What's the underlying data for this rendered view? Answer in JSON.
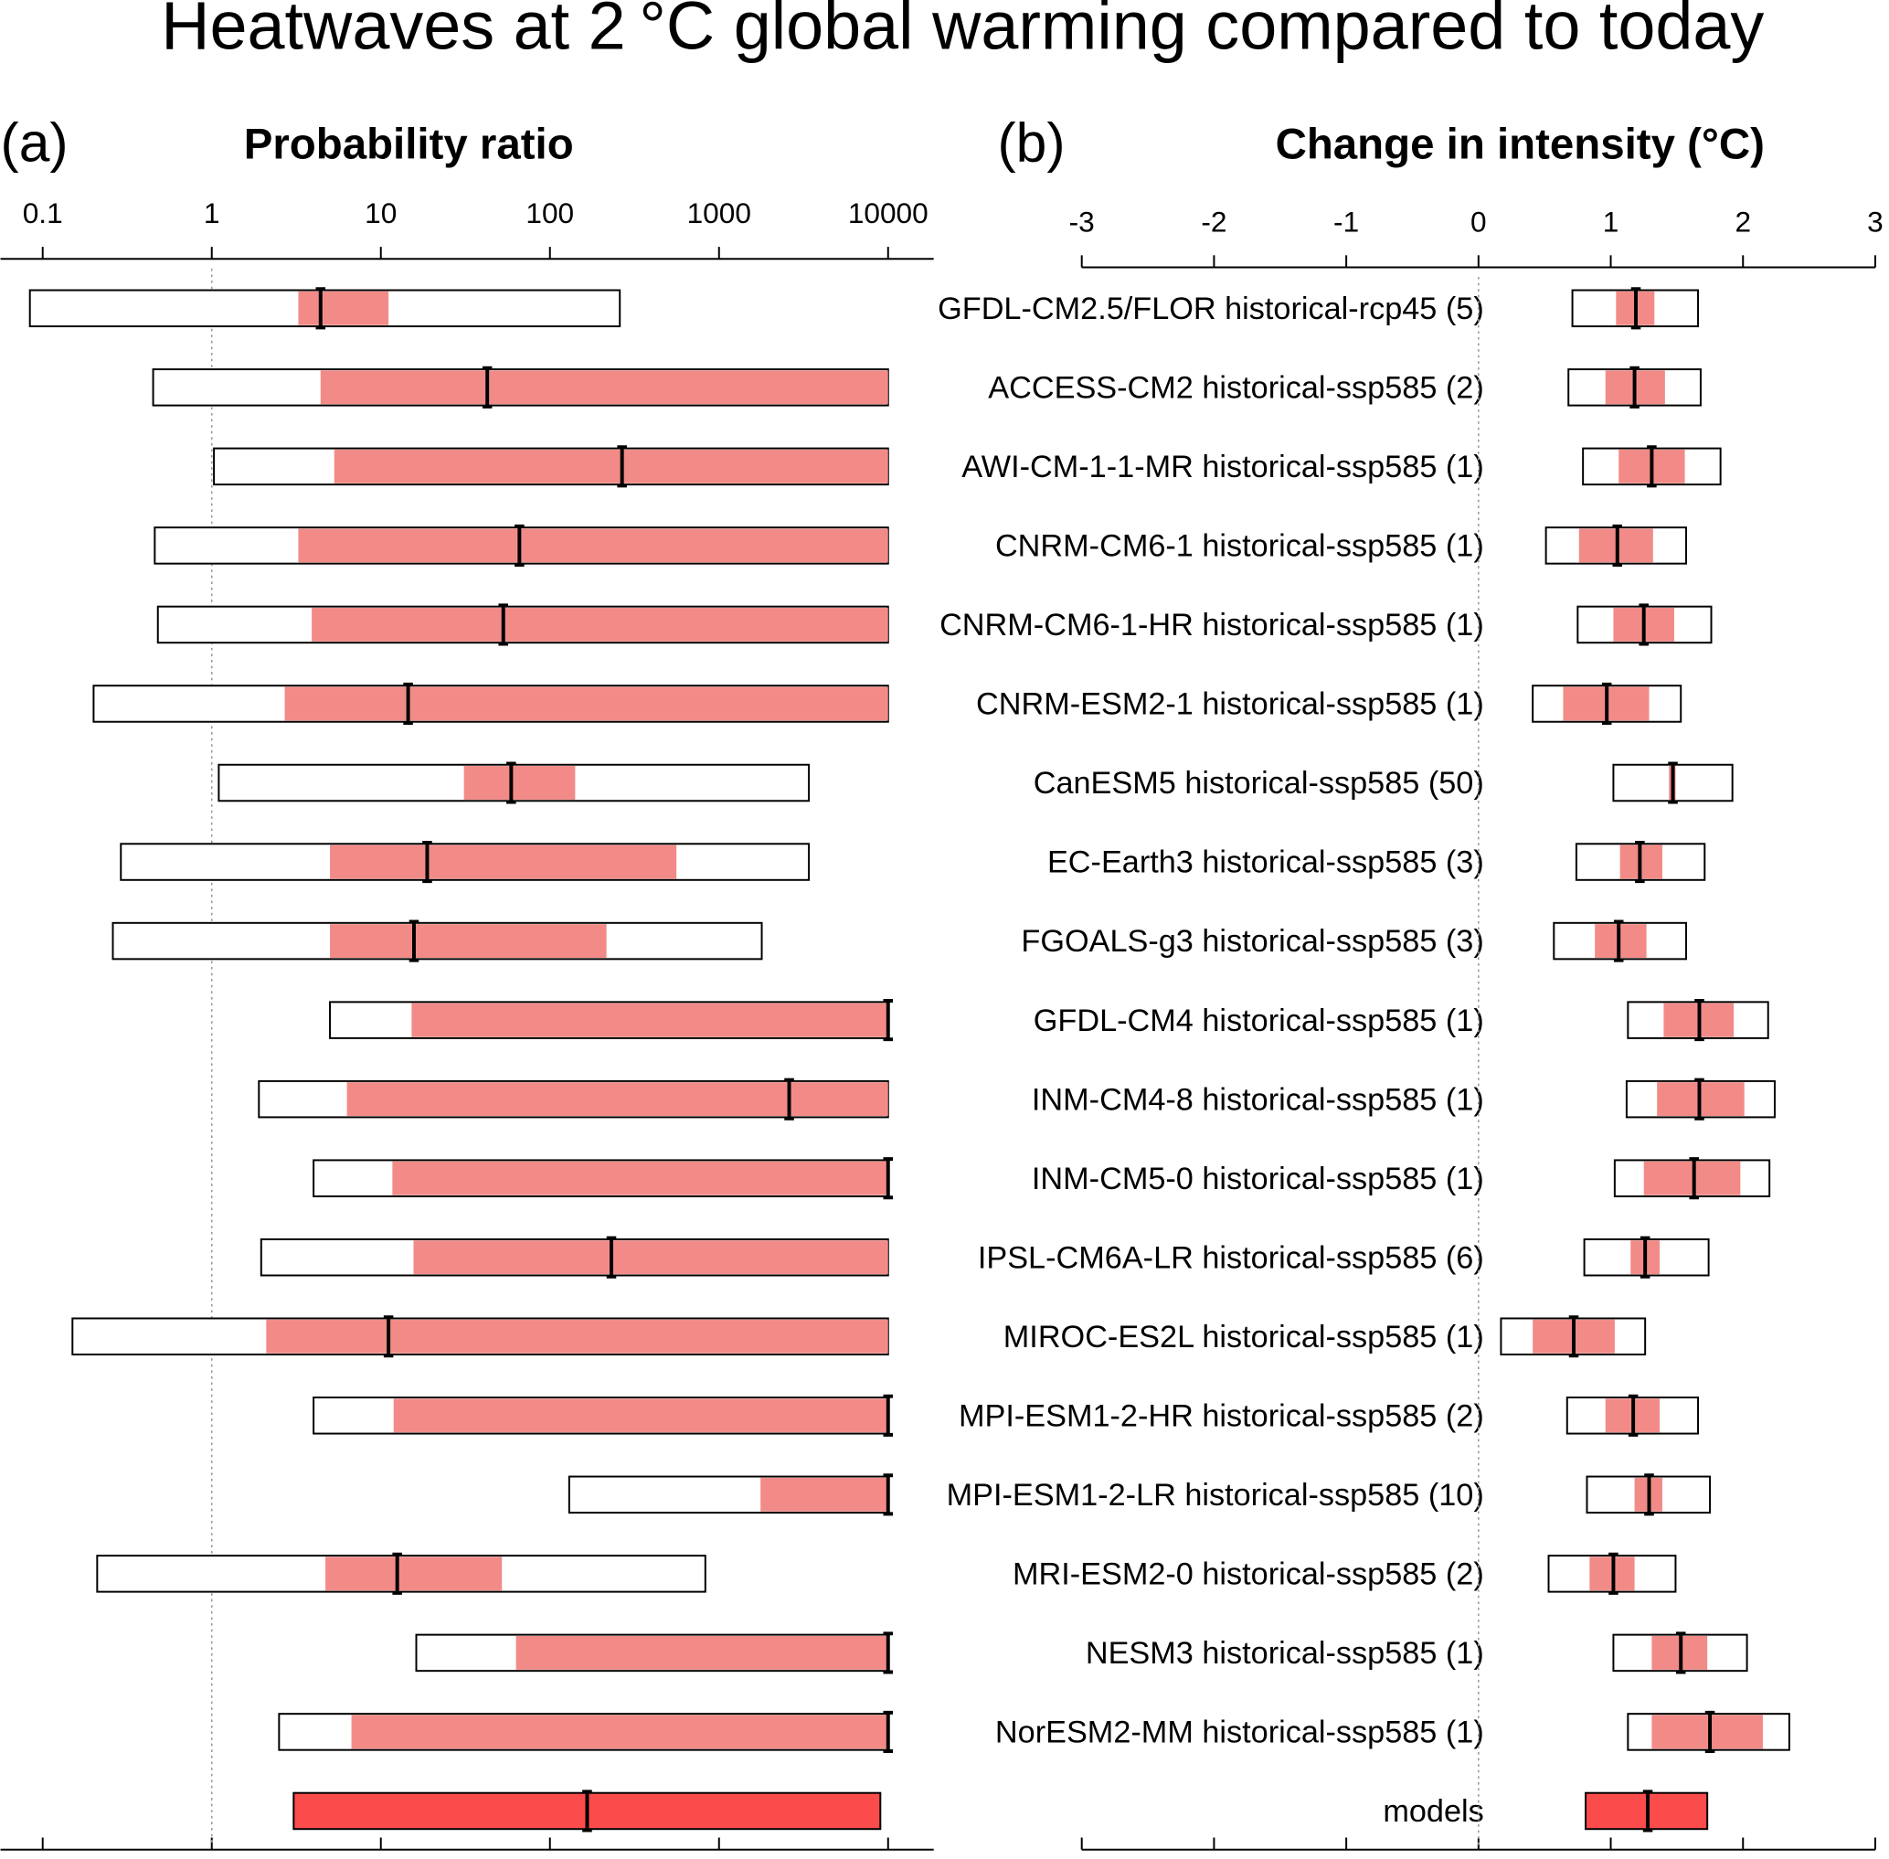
{
  "title": "Heatwaves at 2 °C global warming compared to today",
  "categories": [
    "GFDL-CM2.5/FLOR historical-rcp45 (5)",
    "ACCESS-CM2 historical-ssp585 (2)",
    "AWI-CM-1-1-MR historical-ssp585 (1)",
    "CNRM-CM6-1 historical-ssp585 (1)",
    "CNRM-CM6-1-HR historical-ssp585 (1)",
    "CNRM-ESM2-1 historical-ssp585 (1)",
    "CanESM5 historical-ssp585 (50)",
    "EC-Earth3 historical-ssp585 (3)",
    "FGOALS-g3 historical-ssp585 (3)",
    "GFDL-CM4 historical-ssp585 (1)",
    "INM-CM4-8 historical-ssp585 (1)",
    "INM-CM5-0 historical-ssp585 (1)",
    "IPSL-CM6A-LR historical-ssp585 (6)",
    "MIROC-ES2L historical-ssp585 (1)",
    "MPI-ESM1-2-HR historical-ssp585 (2)",
    "MPI-ESM1-2-LR historical-ssp585 (10)",
    "MRI-ESM2-0 historical-ssp585 (2)",
    "NESM3 historical-ssp585 (1)",
    "NorESM2-MM historical-ssp585 (1)",
    "models"
  ],
  "chart_data": [
    {
      "type": "range",
      "panel": "(a)",
      "title": "Probability ratio",
      "log": true,
      "xlim": [
        0.0563,
        18600
      ],
      "xticks": [
        0.1,
        1,
        10,
        100,
        1000,
        10000
      ],
      "refline": 1,
      "low": [
        0.084,
        0.45,
        1.03,
        0.46,
        0.48,
        0.2,
        1.1,
        0.29,
        0.26,
        5.0,
        1.9,
        4.0,
        1.96,
        0.15,
        4.0,
        130,
        0.21,
        16.2,
        2.5,
        null
      ],
      "high": [
        259,
        10000,
        10000,
        10000,
        10000,
        10000,
        3400,
        3400,
        1790,
        10000,
        10000,
        10000,
        10000,
        10000,
        10000,
        10000,
        830,
        10000,
        10000,
        null
      ],
      "inner_low": [
        3.25,
        4.4,
        5.3,
        3.25,
        3.9,
        2.7,
        31,
        5.0,
        5.0,
        15.2,
        6.3,
        11.7,
        15.6,
        2.1,
        11.9,
        1760,
        4.7,
        63,
        6.7,
        3.05
      ],
      "inner_high": [
        11.1,
        10000,
        10000,
        10000,
        10000,
        10000,
        141,
        560,
        216,
        10000,
        10000,
        10000,
        10000,
        10000,
        10000,
        10000,
        52,
        10000,
        10000,
        9000
      ],
      "best": [
        4.4,
        42.6,
        267,
        66,
        53,
        14.5,
        59,
        18.8,
        15.7,
        10000,
        2600,
        10000,
        231,
        11.1,
        10000,
        10000,
        12.5,
        10000,
        10000,
        166
      ],
      "inner_color": "#f28b87",
      "models_color": "#fb4b4b"
    },
    {
      "type": "range",
      "panel": "(b)",
      "title": "Change in intensity (°C)",
      "log": false,
      "xlim": [
        -3,
        3
      ],
      "xticks": [
        -3,
        -2,
        -1,
        0,
        1,
        2,
        3
      ],
      "refline": 0,
      "low": [
        0.71,
        0.68,
        0.79,
        0.51,
        0.75,
        0.41,
        1.02,
        0.74,
        0.57,
        1.13,
        1.12,
        1.03,
        0.8,
        0.17,
        0.67,
        0.82,
        0.53,
        1.02,
        1.13,
        null
      ],
      "high": [
        1.66,
        1.68,
        1.83,
        1.57,
        1.76,
        1.53,
        1.92,
        1.71,
        1.57,
        2.19,
        2.24,
        2.2,
        1.74,
        1.26,
        1.66,
        1.75,
        1.49,
        2.03,
        2.35,
        null
      ],
      "inner_low": [
        1.04,
        0.96,
        1.06,
        0.76,
        1.02,
        0.64,
        1.44,
        1.07,
        0.88,
        1.4,
        1.35,
        1.25,
        1.15,
        0.41,
        0.96,
        1.18,
        0.84,
        1.31,
        1.31,
        0.81
      ],
      "inner_high": [
        1.33,
        1.41,
        1.56,
        1.32,
        1.48,
        1.29,
        1.49,
        1.39,
        1.27,
        1.93,
        2.01,
        1.98,
        1.37,
        1.03,
        1.37,
        1.39,
        1.18,
        1.73,
        2.15,
        1.73
      ],
      "best": [
        1.19,
        1.18,
        1.31,
        1.05,
        1.25,
        0.97,
        1.47,
        1.22,
        1.06,
        1.67,
        1.67,
        1.63,
        1.26,
        0.72,
        1.17,
        1.29,
        1.02,
        1.53,
        1.75,
        1.28
      ],
      "inner_color": "#f28b87",
      "models_color": "#fb4b4b"
    }
  ]
}
